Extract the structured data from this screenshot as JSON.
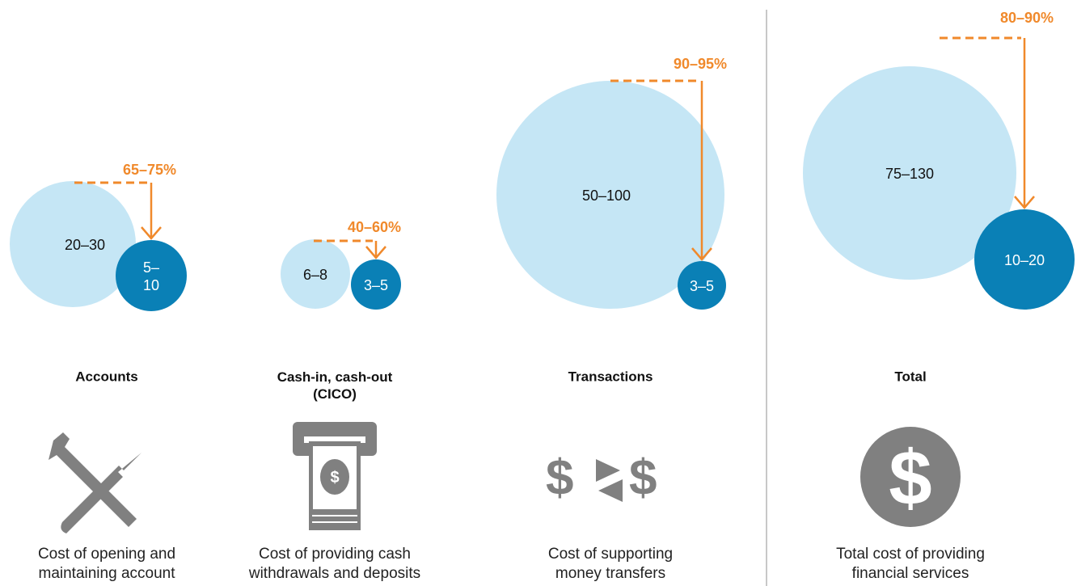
{
  "groups": [
    {
      "title": [
        "Accounts"
      ],
      "before": "20–30",
      "after": "5–10",
      "reduction": "65–75%",
      "description": [
        "Cost of opening and",
        "maintaining account"
      ]
    },
    {
      "title": [
        "Cash-in, cash-out",
        "(CICO)"
      ],
      "before": "6–8",
      "after": "3–5",
      "reduction": "40–60%",
      "description": [
        "Cost of providing cash",
        "withdrawals and deposits"
      ]
    },
    {
      "title": [
        "Transactions"
      ],
      "before": "50–100",
      "after": "3–5",
      "reduction": "90–95%",
      "description": [
        "Cost of supporting",
        "money transfers"
      ]
    },
    {
      "title": [
        "Total"
      ],
      "before": "75–130",
      "after": "10–20",
      "reduction": "80–90%",
      "description": [
        "Total cost of providing",
        "financial services"
      ]
    }
  ]
}
